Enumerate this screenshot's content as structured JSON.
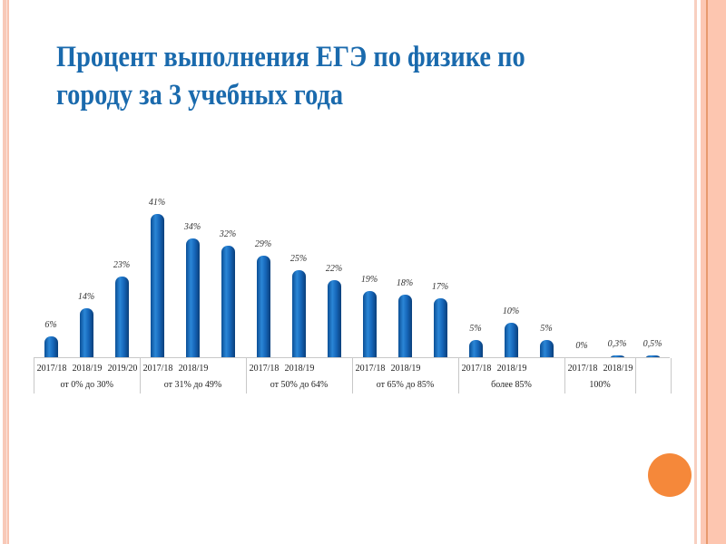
{
  "slide": {
    "title": "Процент выполнения ЕГЭ по физике по городу за 3 учебных года",
    "title_line1": "Процент выполнения ЕГЭ по физике по",
    "title_line2": "городу за 3 учебных года",
    "accent_color": "#1a6aad",
    "bar_color": "#1565b8",
    "decor_dot_color": "#f5883a"
  },
  "chart_data": {
    "type": "bar",
    "title": "Процент выполнения ЕГЭ по физике по городу за 3 учебных года",
    "xlabel": "",
    "ylabel": "",
    "grid": false,
    "legend": null,
    "groups": [
      {
        "label": "от 0% до 30%",
        "years": [
          "2017/18",
          "2018/19",
          "2019/20"
        ],
        "values": [
          6,
          14,
          23
        ],
        "value_labels": [
          "6%",
          "14%",
          "23%"
        ]
      },
      {
        "label": "от 31% до 49%",
        "years": [
          "2017/18",
          "2018/19",
          ""
        ],
        "values": [
          41,
          34,
          32
        ],
        "value_labels": [
          "41%",
          "34%",
          "32%"
        ]
      },
      {
        "label": "от 50% до 64%",
        "years": [
          "2017/18",
          "2018/19",
          ""
        ],
        "values": [
          29,
          25,
          22
        ],
        "value_labels": [
          "29%",
          "25%",
          "22%"
        ]
      },
      {
        "label": "от 65% до 85%",
        "years": [
          "2017/18",
          "2018/19",
          ""
        ],
        "values": [
          19,
          18,
          17
        ],
        "value_labels": [
          "19%",
          "18%",
          "17%"
        ]
      },
      {
        "label": "более 85%",
        "years": [
          "2017/18",
          "2018/19",
          ""
        ],
        "values": [
          5,
          10,
          5
        ],
        "value_labels": [
          "5%",
          "10%",
          "5%"
        ]
      },
      {
        "label": "100%",
        "years": [
          "2017/18",
          "2018/19"
        ],
        "values": [
          0,
          0.3
        ],
        "value_labels": [
          "0%",
          "0,3%"
        ]
      },
      {
        "label": "",
        "years": [
          ""
        ],
        "values": [
          0.5
        ],
        "value_labels": [
          "0,5%"
        ]
      }
    ],
    "ylim": [
      0,
      45
    ]
  }
}
